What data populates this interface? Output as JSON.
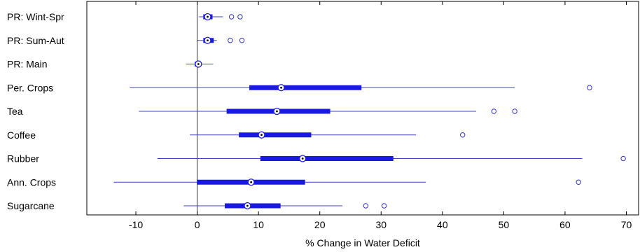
{
  "chart_data": {
    "type": "boxplot",
    "orientation": "horizontal",
    "title": "",
    "xlabel": "% Change in Water Deficit",
    "ylabel": "",
    "xlim": [
      -18,
      72
    ],
    "xticks": [
      -10,
      0,
      10,
      20,
      30,
      40,
      50,
      60,
      70
    ],
    "reference_line_x": 0,
    "grid": false,
    "colors": {
      "box": "#1a1adf",
      "whisker": "#4040c8",
      "outlier": "#3333cc",
      "axis": "#000000",
      "refline": "#333333"
    },
    "categories": [
      "PR: Wint-Spr",
      "PR: Sum-Aut",
      "PR: Main",
      "Per. Crops",
      "Tea",
      "Coffee",
      "Rubber",
      "Ann. Crops",
      "Sugarcane"
    ],
    "series": [
      {
        "category": "PR: Wint-Spr",
        "whisker_low": 0.3,
        "q1": 1.0,
        "median": 1.7,
        "q3": 2.5,
        "whisker_high": 4.2,
        "outliers": [
          5.6,
          7.0
        ]
      },
      {
        "category": "PR: Sum-Aut",
        "whisker_low": 0.0,
        "q1": 1.0,
        "median": 1.7,
        "q3": 2.7,
        "whisker_high": 3.2,
        "outliers": [
          5.4,
          7.3
        ]
      },
      {
        "category": "PR: Main",
        "whisker_low": -1.8,
        "q1": -0.4,
        "median": 0.2,
        "q3": 0.6,
        "whisker_high": 2.6,
        "outliers": []
      },
      {
        "category": "Per. Crops",
        "whisker_low": -11.0,
        "q1": 8.5,
        "median": 13.7,
        "q3": 26.8,
        "whisker_high": 51.8,
        "outliers": [
          64.0
        ]
      },
      {
        "category": "Tea",
        "whisker_low": -9.5,
        "q1": 4.8,
        "median": 13.0,
        "q3": 21.7,
        "whisker_high": 45.5,
        "outliers": [
          48.4,
          51.8
        ]
      },
      {
        "category": "Coffee",
        "whisker_low": -1.2,
        "q1": 6.8,
        "median": 10.5,
        "q3": 18.6,
        "whisker_high": 35.7,
        "outliers": [
          43.3
        ]
      },
      {
        "category": "Rubber",
        "whisker_low": -6.5,
        "q1": 10.3,
        "median": 17.2,
        "q3": 32.0,
        "whisker_high": 62.8,
        "outliers": [
          69.5
        ]
      },
      {
        "category": "Ann. Crops",
        "whisker_low": -13.6,
        "q1": 0.0,
        "median": 8.8,
        "q3": 17.6,
        "whisker_high": 37.3,
        "outliers": [
          62.2
        ]
      },
      {
        "category": "Sugarcane",
        "whisker_low": -2.2,
        "q1": 4.5,
        "median": 8.2,
        "q3": 13.6,
        "whisker_high": 23.7,
        "outliers": [
          27.5,
          30.5
        ]
      }
    ]
  }
}
